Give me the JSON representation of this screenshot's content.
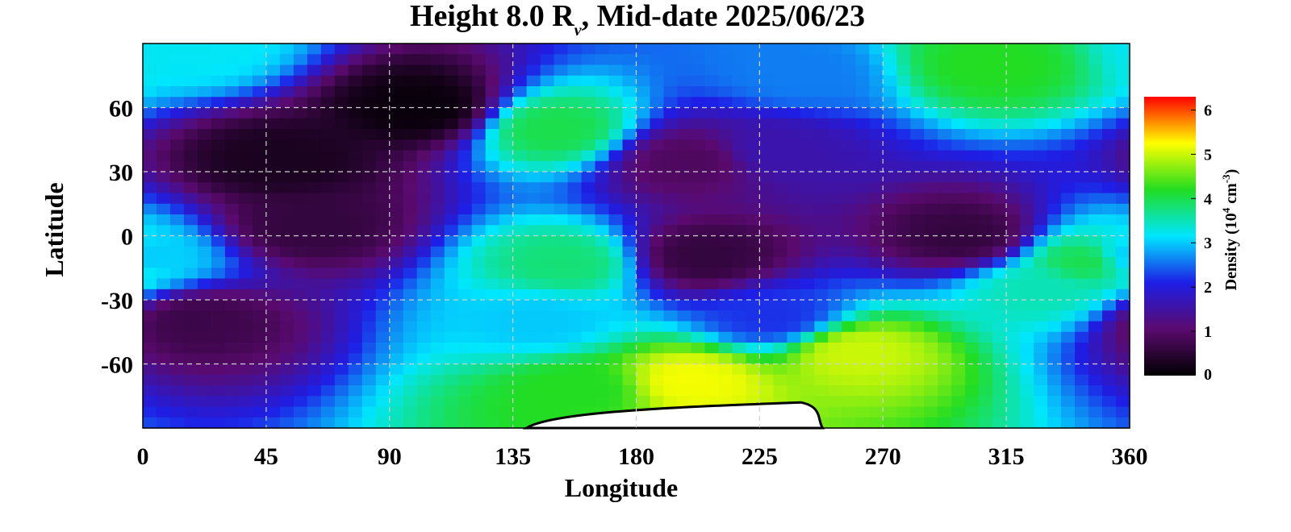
{
  "chart_data": {
    "type": "heatmap",
    "title_prefix": "Height 8.0 R",
    "title_subscript": "ν",
    "title_suffix": ", Mid-date 2025/06/23",
    "xlabel": "Longitude",
    "ylabel": "Latitude",
    "xlim": [
      0,
      360
    ],
    "ylim": [
      -90,
      90
    ],
    "x_ticks": [
      "0",
      "45",
      "90",
      "135",
      "180",
      "225",
      "270",
      "315",
      "360"
    ],
    "x_tick_values": [
      0,
      45,
      90,
      135,
      180,
      225,
      270,
      315,
      360
    ],
    "y_ticks": [
      "60",
      "30",
      "0",
      "-30",
      "-60"
    ],
    "y_tick_values": [
      60,
      30,
      0,
      -30,
      -60
    ],
    "grid": true,
    "colorbar": {
      "label_prefix": "Density (10",
      "label_sup1": "4",
      "label_mid": " cm",
      "label_sup2": "-3",
      "label_suffix": ")",
      "range": [
        0,
        6.3
      ],
      "ticks": [
        "6",
        "5",
        "4",
        "3",
        "2",
        "1",
        "0"
      ],
      "tick_values": [
        6,
        5,
        4,
        3,
        2,
        1,
        0
      ],
      "colors": [
        "#000000",
        "#5a0a6e",
        "#1e1ee6",
        "#00e6ff",
        "#22dd22",
        "#ffff00",
        "#ff0000"
      ]
    },
    "no_data_color": "#ffffff",
    "density_grid_note_omitted": true,
    "features": [
      {
        "lon": 50,
        "lat": 35,
        "value": 0.3
      },
      {
        "lon": 102,
        "lat": 60,
        "value": 0.1
      },
      {
        "lon": 60,
        "lat": 5,
        "value": 0.6
      },
      {
        "lon": 20,
        "lat": -40,
        "value": 0.7
      },
      {
        "lon": 205,
        "lat": -10,
        "value": 0.6
      },
      {
        "lon": 300,
        "lat": 0,
        "value": 0.6
      },
      {
        "lon": 200,
        "lat": 35,
        "value": 0.9
      },
      {
        "lon": 230,
        "lat": 40,
        "value": 1.6
      },
      {
        "lon": 240,
        "lat": 75,
        "value": 2.6
      },
      {
        "lon": 310,
        "lat": 80,
        "value": 4.2
      },
      {
        "lon": 20,
        "lat": 88,
        "value": 3.2
      },
      {
        "lon": 150,
        "lat": 50,
        "value": 4.0
      },
      {
        "lon": 155,
        "lat": -13,
        "value": 3.8
      },
      {
        "lon": 145,
        "lat": -40,
        "value": 3.0
      },
      {
        "lon": 0,
        "lat": -10,
        "value": 3.0
      },
      {
        "lon": 345,
        "lat": -12,
        "value": 4.0
      },
      {
        "lon": 328,
        "lat": -25,
        "value": 3.5
      },
      {
        "lon": 260,
        "lat": -55,
        "value": 5.0
      },
      {
        "lon": 200,
        "lat": -68,
        "value": 5.2
      },
      {
        "lon": 160,
        "lat": -72,
        "value": 4.2
      },
      {
        "lon": 230,
        "lat": -38,
        "value": 2.2
      }
    ]
  }
}
